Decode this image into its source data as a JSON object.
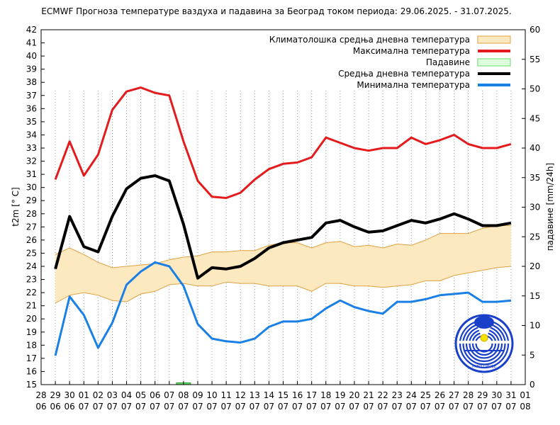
{
  "chart_data": {
    "type": "line",
    "title": "ECMWF Прогноза температуре ваздуха и падавина за Београд током периода: 29.06.2025. - 31.07.2025.",
    "ylabel": "t2m [° C]",
    "y2label": "падавине [mm/24h]",
    "ylim": [
      15,
      42
    ],
    "y2lim": [
      0,
      60
    ],
    "grid": "vertical-dotted",
    "legend_position": "top-right",
    "x_ticks": [
      {
        "day": "28",
        "month": "06"
      },
      {
        "day": "29",
        "month": "06"
      },
      {
        "day": "30",
        "month": "06"
      },
      {
        "day": "01",
        "month": "07"
      },
      {
        "day": "02",
        "month": "07"
      },
      {
        "day": "03",
        "month": "07"
      },
      {
        "day": "04",
        "month": "07"
      },
      {
        "day": "05",
        "month": "07"
      },
      {
        "day": "06",
        "month": "07"
      },
      {
        "day": "07",
        "month": "07"
      },
      {
        "day": "08",
        "month": "07"
      },
      {
        "day": "09",
        "month": "07"
      },
      {
        "day": "10",
        "month": "07"
      },
      {
        "day": "11",
        "month": "07"
      },
      {
        "day": "12",
        "month": "07"
      },
      {
        "day": "13",
        "month": "07"
      },
      {
        "day": "14",
        "month": "07"
      },
      {
        "day": "15",
        "month": "07"
      },
      {
        "day": "16",
        "month": "07"
      },
      {
        "day": "17",
        "month": "07"
      },
      {
        "day": "18",
        "month": "07"
      },
      {
        "day": "19",
        "month": "07"
      },
      {
        "day": "20",
        "month": "07"
      },
      {
        "day": "21",
        "month": "07"
      },
      {
        "day": "22",
        "month": "07"
      },
      {
        "day": "23",
        "month": "07"
      },
      {
        "day": "24",
        "month": "07"
      },
      {
        "day": "25",
        "month": "07"
      },
      {
        "day": "26",
        "month": "07"
      },
      {
        "day": "27",
        "month": "07"
      },
      {
        "day": "28",
        "month": "07"
      },
      {
        "day": "29",
        "month": "07"
      },
      {
        "day": "30",
        "month": "07"
      },
      {
        "day": "31",
        "month": "07"
      },
      {
        "day": "01",
        "month": "08"
      }
    ],
    "y_ticks": [
      15,
      16,
      17,
      18,
      19,
      20,
      21,
      22,
      23,
      24,
      25,
      26,
      27,
      28,
      29,
      30,
      31,
      32,
      33,
      34,
      35,
      36,
      37,
      38,
      39,
      40,
      41,
      42
    ],
    "y2_ticks": [
      0,
      5,
      10,
      15,
      20,
      25,
      30,
      35,
      40,
      45,
      50,
      55,
      60
    ],
    "dates": [
      "29.06",
      "30.06",
      "01.07",
      "02.07",
      "03.07",
      "04.07",
      "05.07",
      "06.07",
      "07.07",
      "08.07",
      "09.07",
      "10.07",
      "11.07",
      "12.07",
      "13.07",
      "14.07",
      "15.07",
      "16.07",
      "17.07",
      "18.07",
      "19.07",
      "20.07",
      "21.07",
      "22.07",
      "23.07",
      "24.07",
      "25.07",
      "26.07",
      "27.07",
      "28.07",
      "29.07",
      "30.07",
      "31.07"
    ],
    "series": [
      {
        "name": "Максимална температура",
        "color": "#e41a1c",
        "width": 3,
        "values": [
          30.6,
          33.5,
          30.9,
          32.5,
          35.9,
          37.3,
          37.6,
          37.2,
          37.0,
          33.5,
          30.5,
          29.3,
          29.2,
          29.6,
          30.6,
          31.4,
          31.8,
          31.9,
          32.3,
          33.8,
          33.4,
          33.0,
          32.8,
          33.0,
          33.0,
          33.8,
          33.3,
          33.6,
          34.0,
          33.3,
          33.0,
          33.0,
          33.3
        ]
      },
      {
        "name": "Средња дневна температура",
        "color": "#000000",
        "width": 4,
        "values": [
          23.8,
          27.8,
          25.5,
          25.1,
          27.8,
          29.9,
          30.7,
          30.9,
          30.5,
          27.2,
          23.1,
          23.9,
          23.8,
          24.0,
          24.6,
          25.4,
          25.8,
          26.0,
          26.2,
          27.3,
          27.5,
          27.0,
          26.6,
          26.7,
          27.1,
          27.5,
          27.3,
          27.6,
          28.0,
          27.6,
          27.1,
          27.1,
          27.3
        ]
      },
      {
        "name": "Минимална температура",
        "color": "#1a80e6",
        "width": 3,
        "values": [
          17.2,
          21.7,
          20.3,
          17.8,
          19.7,
          22.6,
          23.6,
          24.3,
          24.0,
          22.5,
          19.6,
          18.5,
          18.3,
          18.2,
          18.5,
          19.4,
          19.8,
          19.8,
          20.0,
          20.8,
          21.4,
          20.9,
          20.6,
          20.4,
          21.3,
          21.3,
          21.5,
          21.8,
          21.9,
          22.0,
          21.3,
          21.3,
          21.4
        ]
      },
      {
        "name": "Падавине",
        "color": "#66dd66",
        "type": "bar",
        "axis": "y2",
        "values": [
          0,
          0,
          0,
          0,
          0,
          0,
          0,
          0,
          0,
          0.3,
          0,
          0,
          0,
          0,
          0,
          0,
          0,
          0,
          0,
          0,
          0,
          0,
          0,
          0,
          0,
          0,
          0,
          0,
          0,
          0,
          0,
          0,
          0
        ]
      }
    ],
    "band": {
      "name": "Климатолошка средња дневна температура",
      "fill": "#fde9c0",
      "stroke": "#e0a040",
      "upper": [
        24.9,
        25.4,
        24.9,
        24.3,
        23.9,
        24.0,
        24.1,
        24.2,
        24.5,
        24.7,
        24.8,
        25.1,
        25.1,
        25.2,
        25.2,
        25.6,
        25.8,
        25.8,
        25.4,
        25.8,
        25.9,
        25.5,
        25.6,
        25.4,
        25.7,
        25.6,
        26.0,
        26.5,
        26.5,
        26.5,
        26.9,
        27.1,
        27.1
      ],
      "lower": [
        21.2,
        21.8,
        22.0,
        21.8,
        21.4,
        21.3,
        21.9,
        22.1,
        22.6,
        22.7,
        22.5,
        22.5,
        22.8,
        22.7,
        22.7,
        22.5,
        22.5,
        22.5,
        22.1,
        22.7,
        22.7,
        22.5,
        22.5,
        22.4,
        22.5,
        22.6,
        22.9,
        22.9,
        23.3,
        23.5,
        23.7,
        23.9,
        24.0
      ]
    },
    "legend": [
      {
        "label": "Климатолошка средња дневна температура",
        "kind": "band"
      },
      {
        "label": "Максимална температура",
        "kind": "line",
        "color": "#e41a1c"
      },
      {
        "label": "Падавине",
        "kind": "bar",
        "color": "#66dd66"
      },
      {
        "label": "Средња дневна температура",
        "kind": "line",
        "color": "#000000"
      },
      {
        "label": "Минимална температура",
        "kind": "line",
        "color": "#1a80e6"
      }
    ],
    "logo_text": "РХМЗ СРБИЈЕ"
  }
}
